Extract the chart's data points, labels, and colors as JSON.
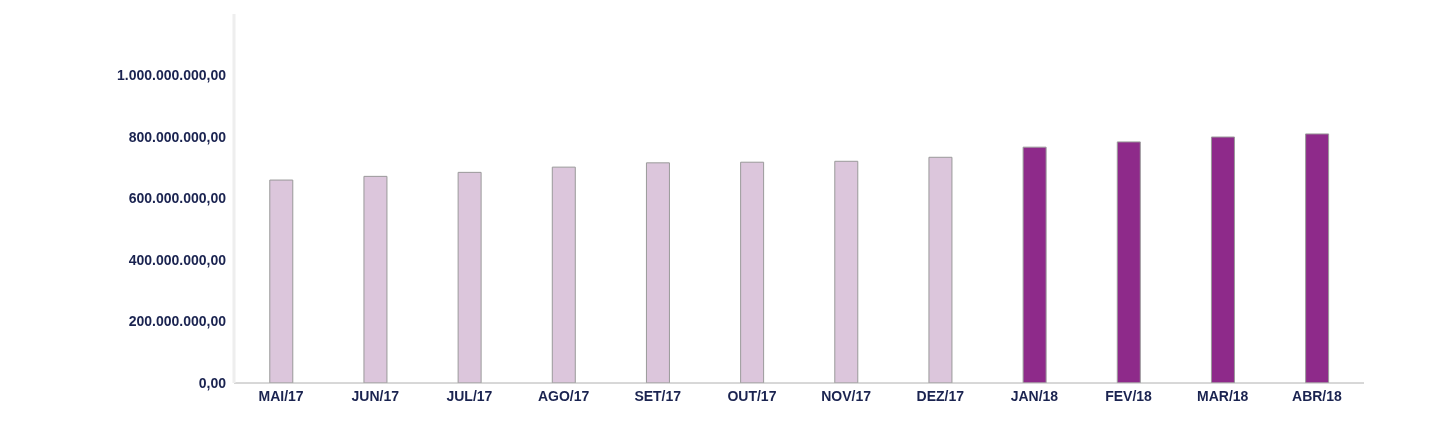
{
  "chart_data": {
    "type": "bar",
    "categories": [
      "MAI/17",
      "JUN/17",
      "JUL/17",
      "AGO/17",
      "SET/17",
      "OUT/17",
      "NOV/17",
      "DEZ/17",
      "JAN/18",
      "FEV/18",
      "MAR/18",
      "ABR/18"
    ],
    "values": [
      660000000,
      672000000,
      685000000,
      702000000,
      716000000,
      718000000,
      721000000,
      734000000,
      767000000,
      784000000,
      800000000,
      810000000
    ],
    "colors": [
      "#dcc6dc",
      "#dcc6dc",
      "#dcc6dc",
      "#dcc6dc",
      "#dcc6dc",
      "#dcc6dc",
      "#dcc6dc",
      "#dcc6dc",
      "#8e2a8a",
      "#8e2a8a",
      "#8e2a8a",
      "#8e2a8a"
    ],
    "ylim": [
      0,
      1200000000
    ],
    "yticks": [
      {
        "value": 0,
        "label": "0,00"
      },
      {
        "value": 200000000,
        "label": "200.000.000,00"
      },
      {
        "value": 400000000,
        "label": "400.000.000,00"
      },
      {
        "value": 600000000,
        "label": "600.000.000,00"
      },
      {
        "value": 800000000,
        "label": "800.000.000,00"
      },
      {
        "value": 1000000000,
        "label": "1.000.000.000,00"
      }
    ],
    "grid": false,
    "legend": false
  }
}
